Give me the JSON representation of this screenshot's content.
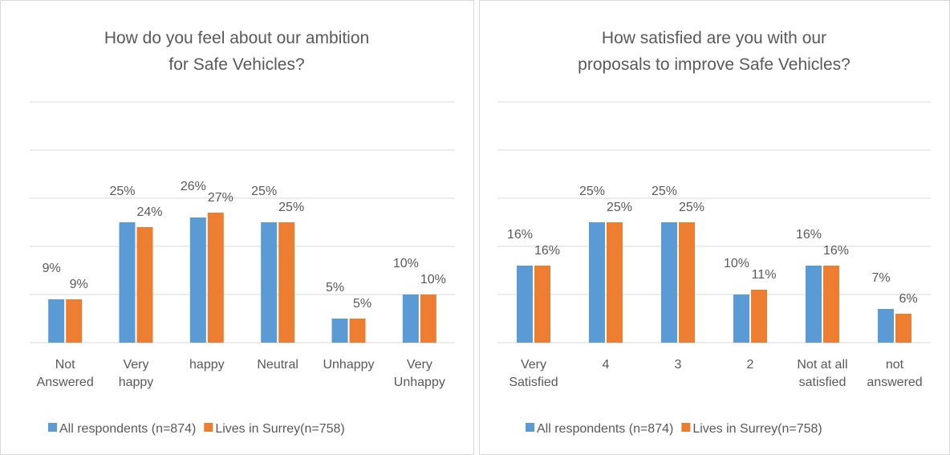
{
  "chart_data": [
    {
      "type": "bar",
      "title": "How do you feel about our ambition\nfor Safe Vehicles?",
      "categories": [
        "Not\nAnswered",
        "Very\nhappy",
        "happy",
        "Neutral",
        "Unhappy",
        "Very\nUnhappy"
      ],
      "series": [
        {
          "name": "All respondents (n=874)",
          "color": "#5b9bd5",
          "values": [
            9,
            25,
            26,
            25,
            5,
            10
          ],
          "value_labels": [
            "9%",
            "25%",
            "26%",
            "25%",
            "5%",
            "10%"
          ]
        },
        {
          "name": "Lives in Surrey(n=758)",
          "color": "#ed7d31",
          "values": [
            9,
            24,
            27,
            25,
            5,
            10
          ],
          "value_labels": [
            "9%",
            "24%",
            "27%",
            "25%",
            "5%",
            "10%"
          ]
        }
      ],
      "ylim": [
        0,
        50
      ],
      "yticks": [
        0,
        10,
        20,
        30,
        40,
        50
      ],
      "grid": true,
      "legend": "bottom"
    },
    {
      "type": "bar",
      "title": "How satisfied are you with our\nproposals to improve Safe Vehicles?",
      "categories": [
        "Very\nSatisfied",
        "4",
        "3",
        "2",
        "Not at all\nsatisfied",
        "not\nanswered"
      ],
      "series": [
        {
          "name": "All respondents (n=874)",
          "color": "#5b9bd5",
          "values": [
            16,
            25,
            25,
            10,
            16,
            7
          ],
          "value_labels": [
            "16%",
            "25%",
            "25%",
            "10%",
            "16%",
            "7%"
          ]
        },
        {
          "name": "Lives in Surrey(n=758)",
          "color": "#ed7d31",
          "values": [
            16,
            25,
            25,
            11,
            16,
            6
          ],
          "value_labels": [
            "16%",
            "25%",
            "25%",
            "11%",
            "16%",
            "6%"
          ]
        }
      ],
      "ylim": [
        0,
        50
      ],
      "yticks": [
        0,
        10,
        20,
        30,
        40,
        50
      ],
      "grid": true,
      "legend": "bottom"
    }
  ]
}
